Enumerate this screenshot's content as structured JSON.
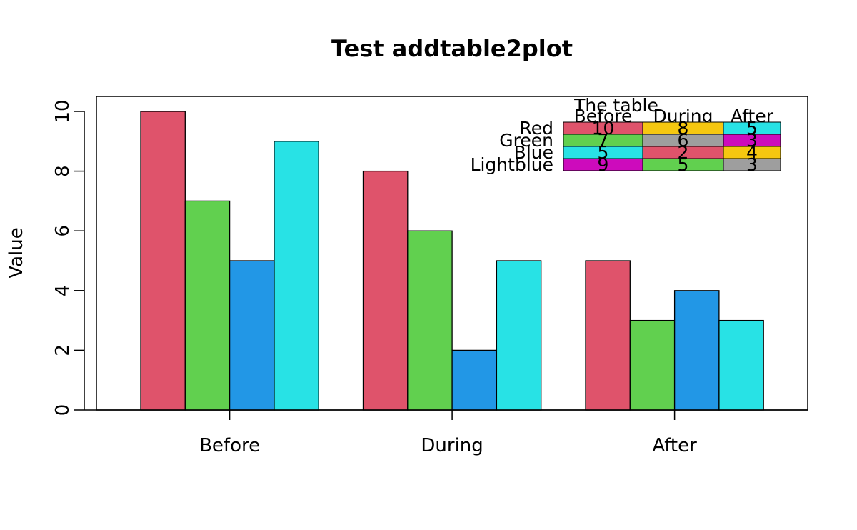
{
  "chart_data": {
    "type": "bar",
    "title": "Test addtable2plot",
    "xlabel": "",
    "ylabel": "Value",
    "ylim": [
      0,
      10
    ],
    "yticks": [
      0,
      2,
      4,
      6,
      8,
      10
    ],
    "categories": [
      "Before",
      "During",
      "After"
    ],
    "series": [
      {
        "name": "Red",
        "color": "#DF536B",
        "values": [
          10,
          8,
          5
        ]
      },
      {
        "name": "Green",
        "color": "#61D04F",
        "values": [
          7,
          6,
          3
        ]
      },
      {
        "name": "Blue",
        "color": "#2297E6",
        "values": [
          5,
          2,
          4
        ]
      },
      {
        "name": "Lightblue",
        "color": "#28E2E5",
        "values": [
          9,
          5,
          3
        ]
      }
    ],
    "table": {
      "title": "The table",
      "columns": [
        "Before",
        "During",
        "After"
      ],
      "rows": [
        {
          "name": "Red",
          "values": [
            "10",
            "8",
            "5"
          ],
          "colors": [
            "#DF536B",
            "#F5C710",
            "#28E2E5"
          ]
        },
        {
          "name": "Green",
          "values": [
            "7",
            "6",
            "3"
          ],
          "colors": [
            "#61D04F",
            "#9E9E9E",
            "#CD0BBC"
          ]
        },
        {
          "name": "Blue",
          "values": [
            "5",
            "2",
            "4"
          ],
          "colors": [
            "#28E2E5",
            "#DF536B",
            "#F5C710"
          ]
        },
        {
          "name": "Lightblue",
          "values": [
            "9",
            "5",
            "3"
          ],
          "colors": [
            "#CD0BBC",
            "#61D04F",
            "#9E9E9E"
          ]
        }
      ]
    }
  }
}
